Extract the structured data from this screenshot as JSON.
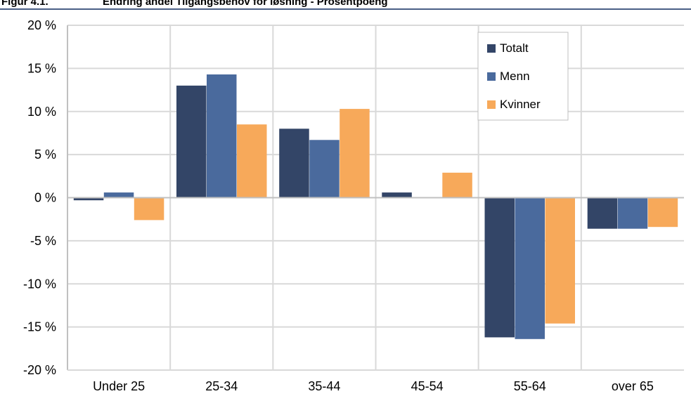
{
  "figure": {
    "label": "Figur 4.1.",
    "title": "Endring andel Tilgangsbehov for løsning - Prosentpoeng"
  },
  "chart_data": {
    "type": "bar",
    "categories": [
      "Under 25",
      "25-34",
      "35-44",
      "45-54",
      "55-64",
      "over 65"
    ],
    "series": [
      {
        "name": "Totalt",
        "color": "#334567",
        "values": [
          -0.3,
          13.0,
          8.0,
          0.6,
          -16.2,
          -3.6
        ]
      },
      {
        "name": "Menn",
        "color": "#4a6a9d",
        "values": [
          0.6,
          14.3,
          6.7,
          0.0,
          -16.4,
          -3.6
        ]
      },
      {
        "name": "Kvinner",
        "color": "#f7a95a",
        "values": [
          -2.6,
          8.5,
          10.3,
          2.9,
          -14.6,
          -3.4
        ]
      }
    ],
    "yticks": [
      "20 %",
      "15 %",
      "10 %",
      "5 %",
      "0 %",
      "-5 %",
      "-10 %",
      "-15 %",
      "-20 %"
    ],
    "ylim": [
      -20,
      20
    ],
    "grid": true,
    "legend_position": "top-right",
    "colors": {
      "grid": "#d9d9d9",
      "axis": "#c0c0c0",
      "frame": "#bfbfbf"
    }
  }
}
